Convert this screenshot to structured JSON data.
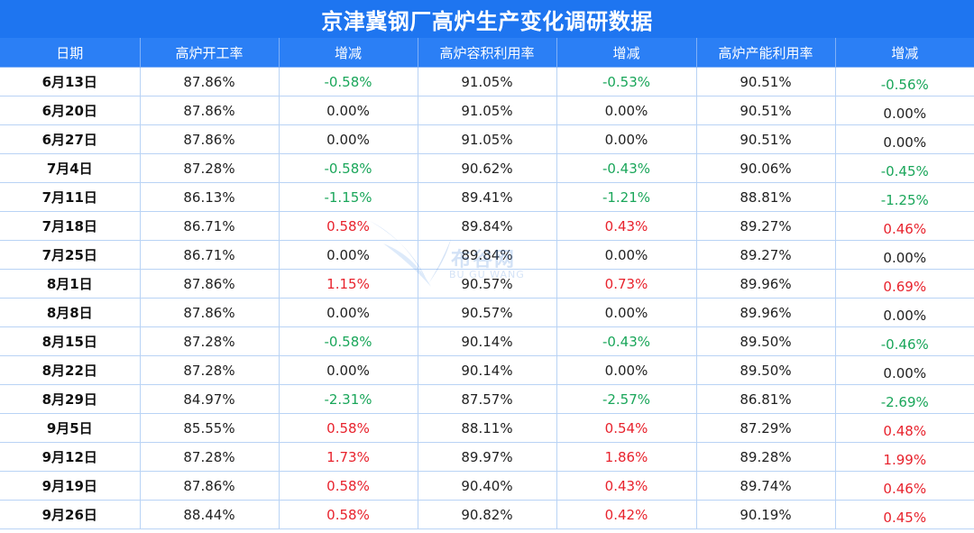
{
  "title": "京津冀钢厂高炉生产变化调研数据",
  "headers": [
    "日期",
    "高炉开工率",
    "增减",
    "高炉容积利用率",
    "增减",
    "高炉产能利用率",
    "增减"
  ],
  "rows": [
    [
      "6月13日",
      "87.86%",
      "-0.58%",
      "91.05%",
      "-0.53%",
      "90.51%",
      "-0.56%"
    ],
    [
      "6月20日",
      "87.86%",
      "0.00%",
      "91.05%",
      "0.00%",
      "90.51%",
      "0.00%"
    ],
    [
      "6月27日",
      "87.86%",
      "0.00%",
      "91.05%",
      "0.00%",
      "90.51%",
      "0.00%"
    ],
    [
      "7月4日",
      "87.28%",
      "-0.58%",
      "90.62%",
      "-0.43%",
      "90.06%",
      "-0.45%"
    ],
    [
      "7月11日",
      "86.13%",
      "-1.15%",
      "89.41%",
      "-1.21%",
      "88.81%",
      "-1.25%"
    ],
    [
      "7月18日",
      "86.71%",
      "0.58%",
      "89.84%",
      "0.43%",
      "89.27%",
      "0.46%"
    ],
    [
      "7月25日",
      "86.71%",
      "0.00%",
      "89.84%",
      "0.00%",
      "89.27%",
      "0.00%"
    ],
    [
      "8月1日",
      "87.86%",
      "1.15%",
      "90.57%",
      "0.73%",
      "89.96%",
      "0.69%"
    ],
    [
      "8月8日",
      "87.86%",
      "0.00%",
      "90.57%",
      "0.00%",
      "89.96%",
      "0.00%"
    ],
    [
      "8月15日",
      "87.28%",
      "-0.58%",
      "90.14%",
      "-0.43%",
      "89.50%",
      "-0.46%"
    ],
    [
      "8月22日",
      "87.28%",
      "0.00%",
      "90.14%",
      "0.00%",
      "89.50%",
      "0.00%"
    ],
    [
      "8月29日",
      "84.97%",
      "-2.31%",
      "87.57%",
      "-2.57%",
      "86.81%",
      "-2.69%"
    ],
    [
      "9月5日",
      "85.55%",
      "0.58%",
      "88.11%",
      "0.54%",
      "87.29%",
      "0.48%"
    ],
    [
      "9月12日",
      "87.28%",
      "1.73%",
      "89.97%",
      "1.86%",
      "89.28%",
      "1.99%"
    ],
    [
      "9月19日",
      "87.86%",
      "0.58%",
      "90.40%",
      "0.43%",
      "89.74%",
      "0.46%"
    ],
    [
      "9月26日",
      "88.44%",
      "0.58%",
      "90.82%",
      "0.42%",
      "90.19%",
      "0.45%"
    ]
  ],
  "watermark": {
    "text": "布谷网",
    "sub": "BU GU WANG",
    "icon": "bird-logo-icon"
  },
  "colors": {
    "title_bg": "#1e75f0",
    "header_bg": "#2b7ff5",
    "positive": "#e8232d",
    "negative": "#1aa65a"
  }
}
